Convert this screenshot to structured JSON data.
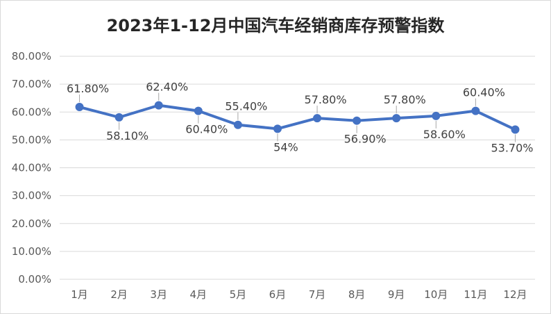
{
  "chart_data": {
    "type": "line",
    "title": "2023年1-12月中国汽车经销商库存预警指数",
    "categories": [
      "1月",
      "2月",
      "3月",
      "4月",
      "5月",
      "6月",
      "7月",
      "8月",
      "9月",
      "10月",
      "11月",
      "12月"
    ],
    "series": [
      {
        "values": [
          61.8,
          58.1,
          62.4,
          60.4,
          55.4,
          54,
          57.8,
          56.9,
          57.8,
          58.6,
          60.4,
          53.7
        ],
        "data_labels": [
          "61.80%",
          "58.10%",
          "62.40%",
          "60.40%",
          "55.40%",
          "54%",
          "57.80%",
          "56.90%",
          "57.80%",
          "58.60%",
          "60.40%",
          "53.70%"
        ],
        "label_positions": [
          "above",
          "below",
          "above",
          "below",
          "above",
          "below",
          "above",
          "below",
          "above",
          "below",
          "above",
          "below"
        ]
      }
    ],
    "yticks": [
      "0.00%",
      "10.00%",
      "20.00%",
      "30.00%",
      "40.00%",
      "50.00%",
      "60.00%",
      "70.00%",
      "80.00%"
    ],
    "ylim": [
      0,
      80
    ],
    "grid": true,
    "legend": "none",
    "colors": {
      "line": "#4472c4",
      "grid": "#d9d9d9",
      "text": "#595959"
    }
  }
}
